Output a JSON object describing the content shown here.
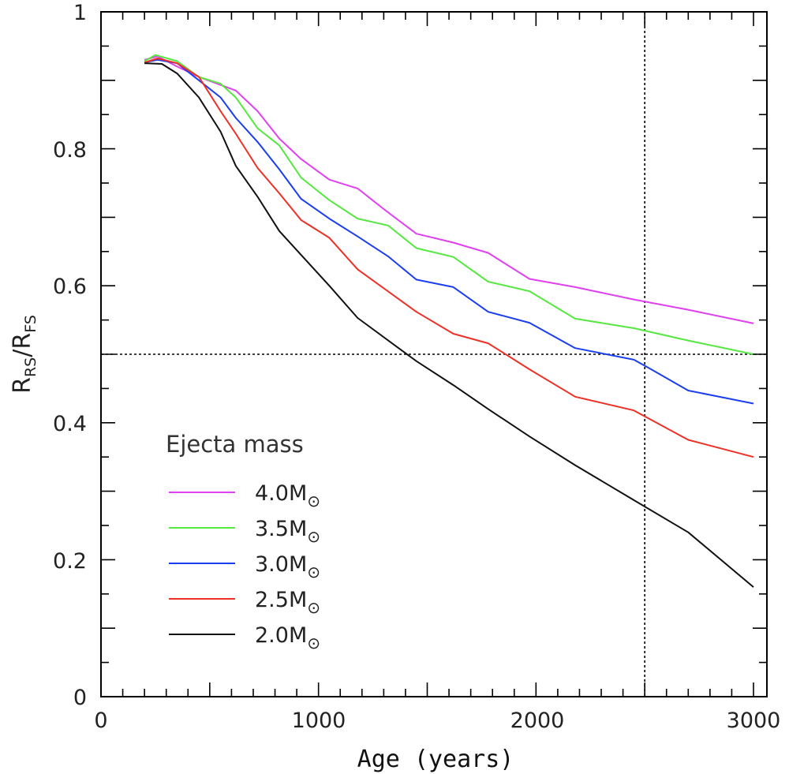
{
  "chart_data": {
    "type": "line",
    "xlabel": "Age (years)",
    "ylabel": {
      "main": "R",
      "num_sub": "RS",
      "sep": "/",
      "den_main": "R",
      "den_sub": "FS"
    },
    "xlim": [
      0,
      3000
    ],
    "ylim": [
      0,
      1
    ],
    "x_ticks": [
      "0",
      "1000",
      "2000",
      "3000"
    ],
    "y_ticks": [
      "0",
      "0.2",
      "0.4",
      "0.6",
      "0.8",
      "1"
    ],
    "x_tick_values": [
      0,
      1000,
      2000,
      3000
    ],
    "y_tick_values": [
      0,
      0.2,
      0.4,
      0.6,
      0.8,
      1
    ],
    "reference_lines": [
      {
        "orientation": "horizontal",
        "value": 0.5,
        "style": "dotted"
      },
      {
        "orientation": "vertical",
        "value": 2500,
        "style": "dotted"
      }
    ],
    "legend": {
      "title": "Ejecta mass",
      "position": "lower-left",
      "unit_symbol": "M",
      "unit_sub": "⊙"
    },
    "series": [
      {
        "name": "4.0",
        "label": "4.0M⊙",
        "color": "#e040f0",
        "x": [
          200,
          260,
          350,
          450,
          620,
          720,
          820,
          920,
          1050,
          1180,
          1300,
          1450,
          1620,
          1780,
          1970,
          2180,
          2450,
          2700,
          3000
        ],
        "y": [
          0.93,
          0.935,
          0.92,
          0.905,
          0.885,
          0.855,
          0.815,
          0.785,
          0.755,
          0.742,
          0.712,
          0.676,
          0.663,
          0.648,
          0.61,
          0.598,
          0.58,
          0.565,
          0.545
        ]
      },
      {
        "name": "3.5",
        "label": "3.5M⊙",
        "color": "#55e840",
        "x": [
          200,
          250,
          350,
          450,
          550,
          620,
          720,
          820,
          920,
          1050,
          1180,
          1320,
          1450,
          1620,
          1780,
          1970,
          2180,
          2450,
          2700,
          3000
        ],
        "y": [
          0.928,
          0.937,
          0.928,
          0.905,
          0.895,
          0.875,
          0.83,
          0.805,
          0.758,
          0.725,
          0.698,
          0.688,
          0.655,
          0.642,
          0.606,
          0.592,
          0.552,
          0.538,
          0.52,
          0.5
        ]
      },
      {
        "name": "3.0",
        "label": "3.0M⊙",
        "color": "#1a3ef0",
        "x": [
          200,
          260,
          350,
          450,
          550,
          620,
          720,
          820,
          920,
          1050,
          1180,
          1320,
          1450,
          1620,
          1780,
          1970,
          2180,
          2450,
          2530,
          2700,
          3000
        ],
        "y": [
          0.926,
          0.93,
          0.925,
          0.9,
          0.875,
          0.845,
          0.81,
          0.77,
          0.727,
          0.698,
          0.672,
          0.643,
          0.609,
          0.598,
          0.562,
          0.546,
          0.509,
          0.492,
          0.478,
          0.447,
          0.428
        ]
      },
      {
        "name": "2.5",
        "label": "2.5M⊙",
        "color": "#ee3025",
        "x": [
          200,
          260,
          350,
          450,
          550,
          620,
          720,
          820,
          920,
          1050,
          1180,
          1450,
          1620,
          1780,
          1970,
          2180,
          2450,
          2700,
          3000
        ],
        "y": [
          0.926,
          0.932,
          0.925,
          0.905,
          0.855,
          0.822,
          0.772,
          0.735,
          0.696,
          0.67,
          0.624,
          0.562,
          0.53,
          0.516,
          0.478,
          0.438,
          0.418,
          0.375,
          0.35
        ]
      },
      {
        "name": "2.0",
        "label": "2.0M⊙",
        "color": "#111111",
        "x": [
          200,
          280,
          350,
          450,
          550,
          620,
          720,
          820,
          920,
          1050,
          1180,
          1450,
          1620,
          1780,
          1970,
          2180,
          2450,
          2700,
          3000
        ],
        "y": [
          0.925,
          0.924,
          0.91,
          0.875,
          0.825,
          0.775,
          0.73,
          0.68,
          0.645,
          0.6,
          0.553,
          0.49,
          0.455,
          0.42,
          0.38,
          0.338,
          0.287,
          0.24,
          0.16
        ]
      }
    ]
  }
}
